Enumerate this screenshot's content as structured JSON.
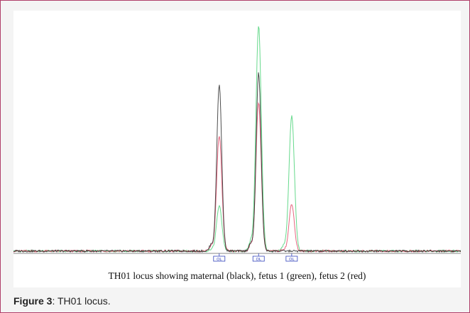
{
  "caption": "TH01 locus showing maternal (black), fetus 1 (green), fetus 2 (red)",
  "figure_label": {
    "number": "Figure 3",
    "separator": ": ",
    "text": "TH01 locus."
  },
  "colors": {
    "maternal": "#222222",
    "fetus1": "#33cc66",
    "fetus2": "#dd3355",
    "marker": "#3344bb"
  },
  "chart_data": {
    "type": "line",
    "title": "",
    "xlabel": "",
    "ylabel": "",
    "xlim": [
      0,
      100
    ],
    "ylim": [
      0,
      100
    ],
    "grid": false,
    "series": [
      {
        "key": "maternal",
        "peaks": [
          {
            "x": 46.0,
            "height": 74
          },
          {
            "x": 54.8,
            "height": 79
          }
        ]
      },
      {
        "key": "fetus1",
        "peaks": [
          {
            "x": 46.0,
            "height": 20
          },
          {
            "x": 54.8,
            "height": 100
          },
          {
            "x": 62.2,
            "height": 60
          }
        ]
      },
      {
        "key": "fetus2",
        "peaks": [
          {
            "x": 46.0,
            "height": 51
          },
          {
            "x": 54.8,
            "height": 66
          },
          {
            "x": 62.2,
            "height": 21
          }
        ]
      }
    ],
    "allele_markers": [
      {
        "x": 46.0,
        "label": "OL"
      },
      {
        "x": 54.8,
        "label": "OL"
      },
      {
        "x": 62.2,
        "label": "OL"
      }
    ]
  }
}
